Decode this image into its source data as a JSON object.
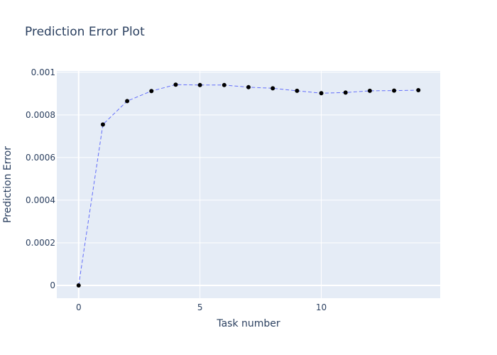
{
  "chart_data": {
    "type": "line",
    "title": "Prediction Error Plot",
    "xlabel": "Task number",
    "ylabel": "Prediction Error",
    "xlim": [
      -0.9,
      14.9
    ],
    "ylim": [
      -6e-05,
      0.001006
    ],
    "x_ticks": [
      0,
      5,
      10
    ],
    "x_tick_labels": [
      "0",
      "5",
      "10"
    ],
    "y_ticks": [
      0,
      0.0002,
      0.0004,
      0.0006,
      0.0008,
      0.001
    ],
    "y_tick_labels": [
      "0",
      "0.0002",
      "0.0004",
      "0.0006",
      "0.0008",
      "0.001"
    ],
    "grid": true,
    "legend": "none",
    "series": [
      {
        "x": [
          0,
          1,
          2,
          3,
          4,
          5,
          6,
          7,
          8,
          9,
          10,
          11,
          12,
          13,
          14
        ],
        "values": [
          0.0,
          0.000755,
          0.000865,
          0.000912,
          0.000942,
          0.00094,
          0.00094,
          0.00093,
          0.000925,
          0.000913,
          0.000902,
          0.000905,
          0.000913,
          0.000914,
          0.000916
        ],
        "line_color": "#636efa",
        "line_style": "dashed",
        "marker_color": "#000000"
      }
    ]
  }
}
